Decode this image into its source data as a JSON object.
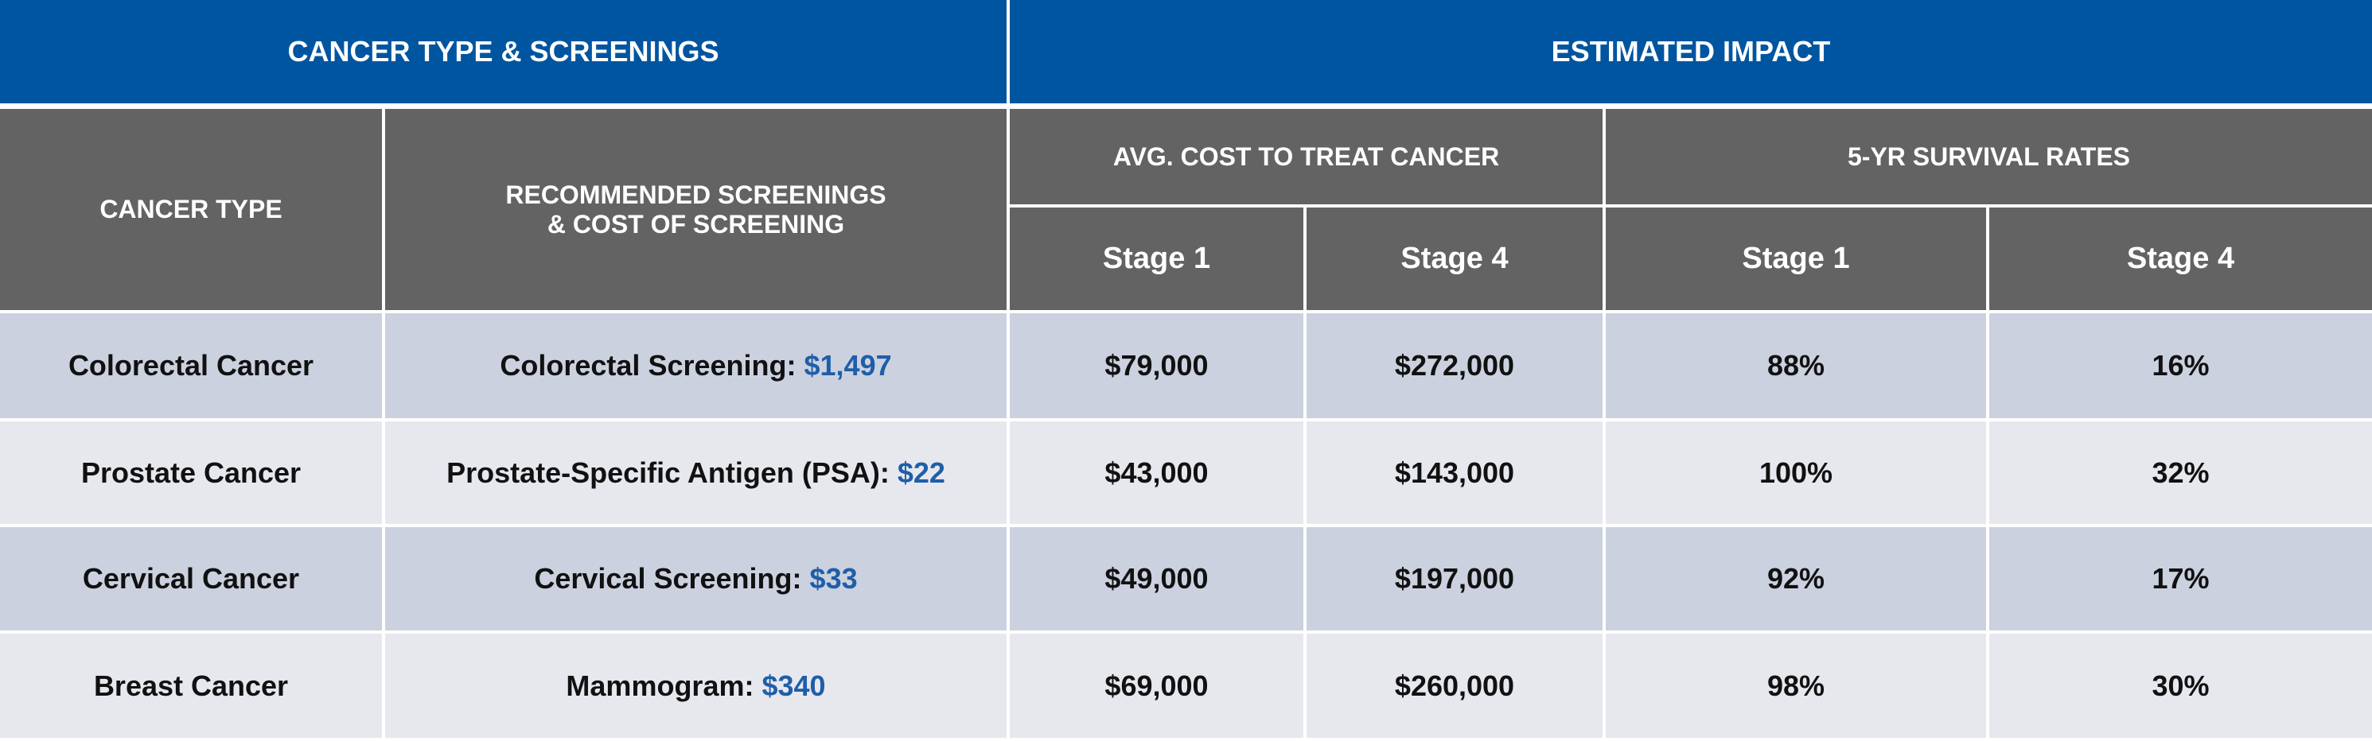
{
  "header": {
    "groups": [
      "CANCER TYPE & SCREENINGS",
      "ESTIMATED IMPACT"
    ],
    "columns": {
      "cancer_type": "CANCER TYPE",
      "screenings": [
        "RECOMMENDED SCREENINGS",
        "& COST OF SCREENING"
      ],
      "cost": "AVG. COST TO TREAT CANCER",
      "survival": "5-YR SURVIVAL RATES"
    },
    "stages": [
      "Stage 1",
      "Stage 4",
      "Stage 1",
      "Stage 4"
    ]
  },
  "table": {
    "rows": [
      [
        "Colorectal Cancer",
        "Colorectal Screening:",
        "$1,497",
        "$79,000",
        "$272,000",
        "88%",
        "16%"
      ],
      [
        "Prostate Cancer",
        "Prostate-Specific Antigen (PSA):",
        "$22",
        "$43,000",
        "$143,000",
        "100%",
        "32%"
      ],
      [
        "Cervical Cancer",
        "Cervical Screening:",
        "$33",
        "$49,000",
        "$197,000",
        "92%",
        "17%"
      ],
      [
        "Breast Cancer",
        "Mammogram:",
        "$340",
        "$69,000",
        "$260,000",
        "98%",
        "30%"
      ]
    ]
  }
}
